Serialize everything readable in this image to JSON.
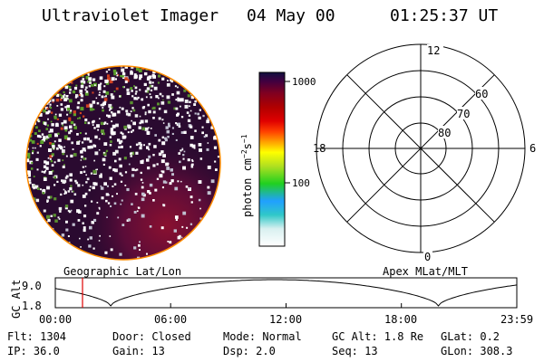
{
  "header": {
    "instrument": "Ultraviolet Imager",
    "date": "04 May 00",
    "time": "01:25:37 UT"
  },
  "colorbar": {
    "label_base": "photon cm",
    "label_exp1": "−2",
    "label_mid": "s",
    "label_exp2": "−1",
    "ticks": [
      "1000",
      "100"
    ],
    "colors": [
      "#ffffff",
      "#d8f0f0",
      "#30c8c8",
      "#20a0ff",
      "#20d020",
      "#b0e020",
      "#ffff00",
      "#ffa000",
      "#ff4000",
      "#e00000",
      "#b00000",
      "#800020",
      "#400040",
      "#101040"
    ]
  },
  "polar_grid": {
    "mlt_labels": [
      "12",
      "18",
      "6",
      "0"
    ],
    "lat_labels": [
      "60",
      "70",
      "80"
    ]
  },
  "panel_captions": {
    "left": "Geographic Lat/Lon",
    "right": "Apex MLat/MLT"
  },
  "altitude_plot": {
    "ylabel": "GC Alt",
    "yticks": [
      "9.0",
      "1.8"
    ],
    "xticks": [
      "00:00",
      "06:00",
      "12:00",
      "18:00",
      "23:59"
    ],
    "current_time_marker": "01:25:37",
    "marker_color": "#e00000"
  },
  "info": {
    "row1": [
      "Flt: 1304",
      "Door: Closed",
      "Mode: Normal",
      "GC Alt: 1.8 Re",
      "GLat:   0.2"
    ],
    "row2": [
      "IP: 36.0",
      "Gain: 13",
      "Dsp:    2.0",
      "Seq: 13",
      "GLon: 308.3"
    ]
  }
}
